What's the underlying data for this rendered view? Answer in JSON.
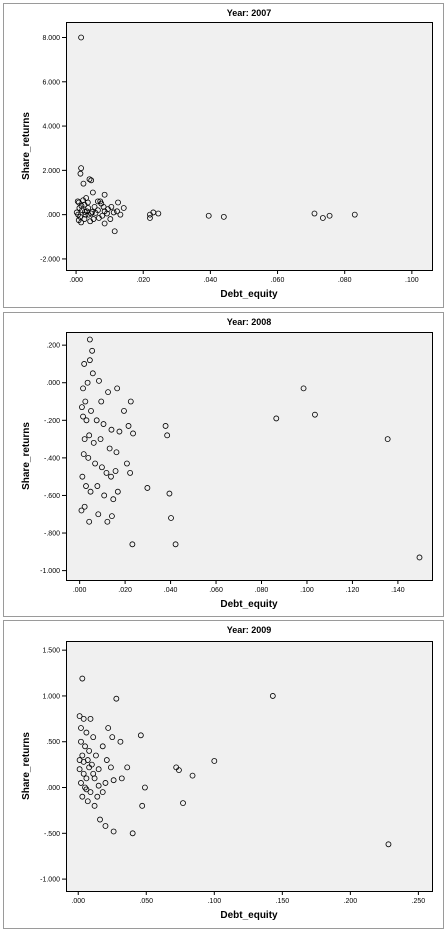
{
  "chart_data": [
    {
      "type": "scatter",
      "title": "Year: 2007",
      "xlabel": "Debt_equity",
      "ylabel": "Share_returns",
      "xlim": [
        -0.003,
        0.106
      ],
      "ylim": [
        -2.5,
        8.7
      ],
      "xticks": [
        0.0,
        0.02,
        0.04,
        0.06,
        0.08,
        0.1
      ],
      "xtick_labels": [
        ".000",
        ".020",
        ".040",
        ".060",
        ".080",
        ".100"
      ],
      "yticks": [
        -2.0,
        0.0,
        2.0,
        4.0,
        6.0,
        8.0
      ],
      "ytick_labels": [
        "-2.000",
        ".000",
        "2.000",
        "4.000",
        "6.000",
        "8.000"
      ],
      "grid": false,
      "points": [
        [
          0.0015,
          8.0
        ],
        [
          0.0015,
          2.1
        ],
        [
          0.0013,
          1.85
        ],
        [
          0.004,
          1.6
        ],
        [
          0.0045,
          1.55
        ],
        [
          0.0022,
          1.4
        ],
        [
          0.0085,
          0.9
        ],
        [
          0.005,
          1.0
        ],
        [
          0.003,
          0.75
        ],
        [
          0.0065,
          0.6
        ],
        [
          0.0008,
          0.55
        ],
        [
          0.0025,
          0.45
        ],
        [
          0.0055,
          0.35
        ],
        [
          0.0075,
          0.5
        ],
        [
          0.001,
          0.3
        ],
        [
          0.0018,
          0.2
        ],
        [
          0.0032,
          0.15
        ],
        [
          0.0045,
          0.05
        ],
        [
          0.0006,
          0.0
        ],
        [
          0.0012,
          -0.1
        ],
        [
          0.0025,
          -0.2
        ],
        [
          0.0042,
          -0.3
        ],
        [
          0.0085,
          -0.4
        ],
        [
          0.0021,
          0.65
        ],
        [
          0.0035,
          0.55
        ],
        [
          0.0065,
          0.2
        ],
        [
          0.0085,
          0.15
        ],
        [
          0.0105,
          0.35
        ],
        [
          0.0125,
          0.55
        ],
        [
          0.0142,
          0.3
        ],
        [
          0.0115,
          -0.75
        ],
        [
          0.0102,
          -0.2
        ],
        [
          0.0092,
          0.05
        ],
        [
          0.0082,
          0.35
        ],
        [
          0.0052,
          -0.2
        ],
        [
          0.0037,
          0.0
        ],
        [
          0.0026,
          0.12
        ],
        [
          0.0015,
          -0.35
        ],
        [
          0.0008,
          -0.25
        ],
        [
          0.0002,
          0.1
        ],
        [
          0.0005,
          0.6
        ],
        [
          0.0028,
          0.0
        ],
        [
          0.0048,
          0.12
        ],
        [
          0.0068,
          -0.15
        ],
        [
          0.0078,
          -0.05
        ],
        [
          0.0112,
          0.1
        ],
        [
          0.0122,
          0.15
        ],
        [
          0.0132,
          0.0
        ],
        [
          0.0016,
          0.4
        ],
        [
          0.0036,
          0.3
        ],
        [
          0.0058,
          0.08
        ],
        [
          0.0072,
          0.6
        ],
        [
          0.0095,
          0.25
        ],
        [
          0.022,
          0.0
        ],
        [
          0.022,
          -0.15
        ],
        [
          0.023,
          0.1
        ],
        [
          0.0245,
          0.05
        ],
        [
          0.0395,
          -0.05
        ],
        [
          0.044,
          -0.1
        ],
        [
          0.071,
          0.05
        ],
        [
          0.0735,
          -0.15
        ],
        [
          0.0755,
          -0.05
        ],
        [
          0.083,
          0.0
        ]
      ]
    },
    {
      "type": "scatter",
      "title": "Year: 2008",
      "xlabel": "Debt_equity",
      "ylabel": "Share_returns",
      "xlim": [
        -0.006,
        0.155
      ],
      "ylim": [
        -1.05,
        0.27
      ],
      "xticks": [
        0.0,
        0.02,
        0.04,
        0.06,
        0.08,
        0.1,
        0.12,
        0.14
      ],
      "xtick_labels": [
        ".000",
        ".020",
        ".040",
        ".060",
        ".080",
        ".100",
        ".120",
        ".140"
      ],
      "yticks": [
        -1.0,
        -0.8,
        -0.6,
        -0.4,
        -0.2,
        0.0,
        0.2
      ],
      "ytick_labels": [
        "-1.000",
        "-.800",
        "-.600",
        "-.400",
        "-.200",
        ".000",
        ".200"
      ],
      "grid": false,
      "points": [
        [
          0.0045,
          0.23
        ],
        [
          0.0055,
          0.17
        ],
        [
          0.002,
          0.1
        ],
        [
          0.0045,
          0.12
        ],
        [
          0.0015,
          -0.03
        ],
        [
          0.0035,
          0.0
        ],
        [
          0.0058,
          0.05
        ],
        [
          0.0085,
          0.01
        ],
        [
          0.0095,
          -0.1
        ],
        [
          0.0125,
          -0.05
        ],
        [
          0.0165,
          -0.03
        ],
        [
          0.0195,
          -0.15
        ],
        [
          0.0225,
          -0.1
        ],
        [
          0.0025,
          -0.1
        ],
        [
          0.001,
          -0.13
        ],
        [
          0.0015,
          -0.18
        ],
        [
          0.003,
          -0.2
        ],
        [
          0.005,
          -0.15
        ],
        [
          0.0075,
          -0.2
        ],
        [
          0.0105,
          -0.22
        ],
        [
          0.014,
          -0.25
        ],
        [
          0.0175,
          -0.26
        ],
        [
          0.0215,
          -0.23
        ],
        [
          0.0235,
          -0.27
        ],
        [
          0.0022,
          -0.3
        ],
        [
          0.0042,
          -0.28
        ],
        [
          0.0062,
          -0.32
        ],
        [
          0.0092,
          -0.3
        ],
        [
          0.0132,
          -0.35
        ],
        [
          0.0162,
          -0.37
        ],
        [
          0.0018,
          -0.38
        ],
        [
          0.0038,
          -0.4
        ],
        [
          0.0068,
          -0.43
        ],
        [
          0.0098,
          -0.45
        ],
        [
          0.0118,
          -0.48
        ],
        [
          0.0138,
          -0.5
        ],
        [
          0.0158,
          -0.47
        ],
        [
          0.0208,
          -0.43
        ],
        [
          0.0222,
          -0.48
        ],
        [
          0.0012,
          -0.5
        ],
        [
          0.0028,
          -0.55
        ],
        [
          0.0048,
          -0.58
        ],
        [
          0.0078,
          -0.55
        ],
        [
          0.0108,
          -0.6
        ],
        [
          0.0148,
          -0.62
        ],
        [
          0.0168,
          -0.58
        ],
        [
          0.0008,
          -0.68
        ],
        [
          0.0022,
          -0.66
        ],
        [
          0.0042,
          -0.74
        ],
        [
          0.0122,
          -0.74
        ],
        [
          0.0142,
          -0.71
        ],
        [
          0.0082,
          -0.7
        ],
        [
          0.0232,
          -0.86
        ],
        [
          0.0298,
          -0.56
        ],
        [
          0.0378,
          -0.23
        ],
        [
          0.0385,
          -0.28
        ],
        [
          0.0395,
          -0.59
        ],
        [
          0.0402,
          -0.72
        ],
        [
          0.0422,
          -0.86
        ],
        [
          0.0865,
          -0.19
        ],
        [
          0.0985,
          -0.03
        ],
        [
          0.1035,
          -0.17
        ],
        [
          0.1355,
          -0.3
        ],
        [
          0.1495,
          -0.93
        ]
      ]
    },
    {
      "type": "scatter",
      "title": "Year: 2009",
      "xlabel": "Debt_equity",
      "ylabel": "Share_returns",
      "xlim": [
        -0.009,
        0.26
      ],
      "ylim": [
        -1.13,
        1.6
      ],
      "xticks": [
        0.0,
        0.05,
        0.1,
        0.15,
        0.2,
        0.25
      ],
      "xtick_labels": [
        ".000",
        ".050",
        ".100",
        ".150",
        ".200",
        ".250"
      ],
      "yticks": [
        -1.0,
        -0.5,
        0.0,
        0.5,
        1.0,
        1.5
      ],
      "ytick_labels": [
        "-1.000",
        "-.500",
        ".000",
        ".500",
        "1.000",
        "1.500"
      ],
      "grid": false,
      "points": [
        [
          0.003,
          1.19
        ],
        [
          0.028,
          0.97
        ],
        [
          0.143,
          1.0
        ],
        [
          0.001,
          0.78
        ],
        [
          0.004,
          0.75
        ],
        [
          0.009,
          0.75
        ],
        [
          0.002,
          0.65
        ],
        [
          0.006,
          0.6
        ],
        [
          0.011,
          0.55
        ],
        [
          0.022,
          0.65
        ],
        [
          0.025,
          0.55
        ],
        [
          0.031,
          0.5
        ],
        [
          0.046,
          0.57
        ],
        [
          0.002,
          0.5
        ],
        [
          0.005,
          0.45
        ],
        [
          0.008,
          0.4
        ],
        [
          0.013,
          0.35
        ],
        [
          0.018,
          0.45
        ],
        [
          0.003,
          0.35
        ],
        [
          0.007,
          0.3
        ],
        [
          0.01,
          0.25
        ],
        [
          0.015,
          0.2
        ],
        [
          0.024,
          0.22
        ],
        [
          0.036,
          0.22
        ],
        [
          0.001,
          0.2
        ],
        [
          0.004,
          0.15
        ],
        [
          0.006,
          0.1
        ],
        [
          0.012,
          0.1
        ],
        [
          0.02,
          0.05
        ],
        [
          0.026,
          0.08
        ],
        [
          0.032,
          0.1
        ],
        [
          0.002,
          0.05
        ],
        [
          0.005,
          0.0
        ],
        [
          0.009,
          -0.05
        ],
        [
          0.014,
          -0.1
        ],
        [
          0.018,
          -0.05
        ],
        [
          0.003,
          -0.1
        ],
        [
          0.007,
          -0.15
        ],
        [
          0.012,
          -0.2
        ],
        [
          0.016,
          -0.35
        ],
        [
          0.02,
          -0.42
        ],
        [
          0.026,
          -0.48
        ],
        [
          0.04,
          -0.5
        ],
        [
          0.047,
          -0.2
        ],
        [
          0.049,
          0.0
        ],
        [
          0.072,
          0.22
        ],
        [
          0.074,
          0.19
        ],
        [
          0.084,
          0.13
        ],
        [
          0.1,
          0.29
        ],
        [
          0.077,
          -0.17
        ],
        [
          0.228,
          -0.62
        ],
        [
          0.001,
          0.3
        ],
        [
          0.004,
          0.28
        ],
        [
          0.008,
          0.22
        ],
        [
          0.011,
          0.15
        ],
        [
          0.006,
          -0.02
        ],
        [
          0.015,
          0.02
        ],
        [
          0.021,
          0.3
        ]
      ]
    }
  ]
}
